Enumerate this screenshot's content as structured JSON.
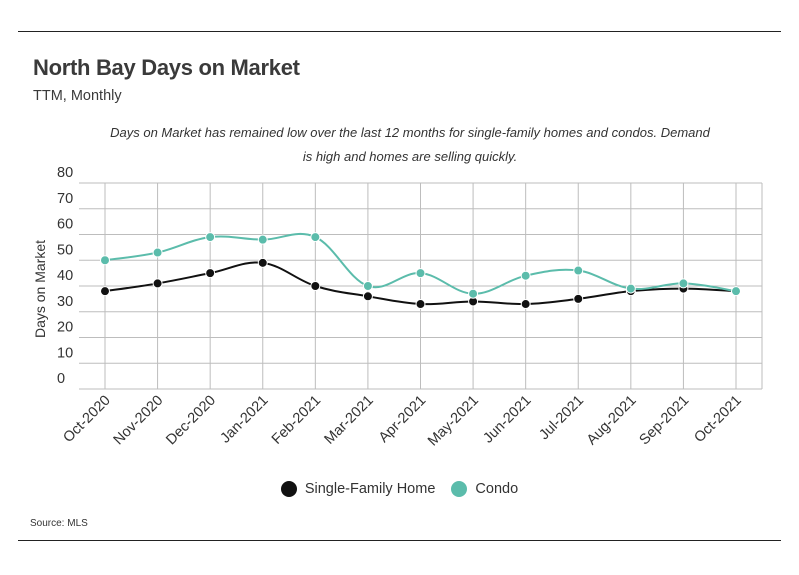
{
  "header": {
    "title": "North Bay Days on Market",
    "subtitle": "TTM, Monthly",
    "note": "Days on Market has remained low over the last 12 months for single-family homes and condos. Demand is high and homes are selling quickly."
  },
  "footer": {
    "source": "Source: MLS"
  },
  "colors": {
    "sfh": "#111111",
    "condo": "#5bbcab",
    "grid": "#bdbdbd"
  },
  "chart_data": {
    "type": "line",
    "ylabel": "Days on Market",
    "xlabel": "",
    "ylim": [
      0,
      80
    ],
    "yticks": [
      0,
      10,
      20,
      30,
      40,
      50,
      60,
      70,
      80
    ],
    "grid": true,
    "legend_position": "bottom",
    "categories": [
      "Oct-2020",
      "Nov-2020",
      "Dec-2020",
      "Jan-2021",
      "Feb-2021",
      "Mar-2021",
      "Apr-2021",
      "May-2021",
      "Jun-2021",
      "Jul-2021",
      "Aug-2021",
      "Sep-2021",
      "Oct-2021"
    ],
    "series": [
      {
        "name": "Single-Family Home",
        "color": "#111111",
        "values": [
          38,
          41,
          45,
          49,
          40,
          36,
          33,
          34,
          33,
          35,
          38,
          39,
          38
        ]
      },
      {
        "name": "Condo",
        "color": "#5bbcab",
        "values": [
          50,
          53,
          59,
          58,
          59,
          40,
          45,
          37,
          44,
          46,
          39,
          41,
          38
        ]
      }
    ]
  }
}
